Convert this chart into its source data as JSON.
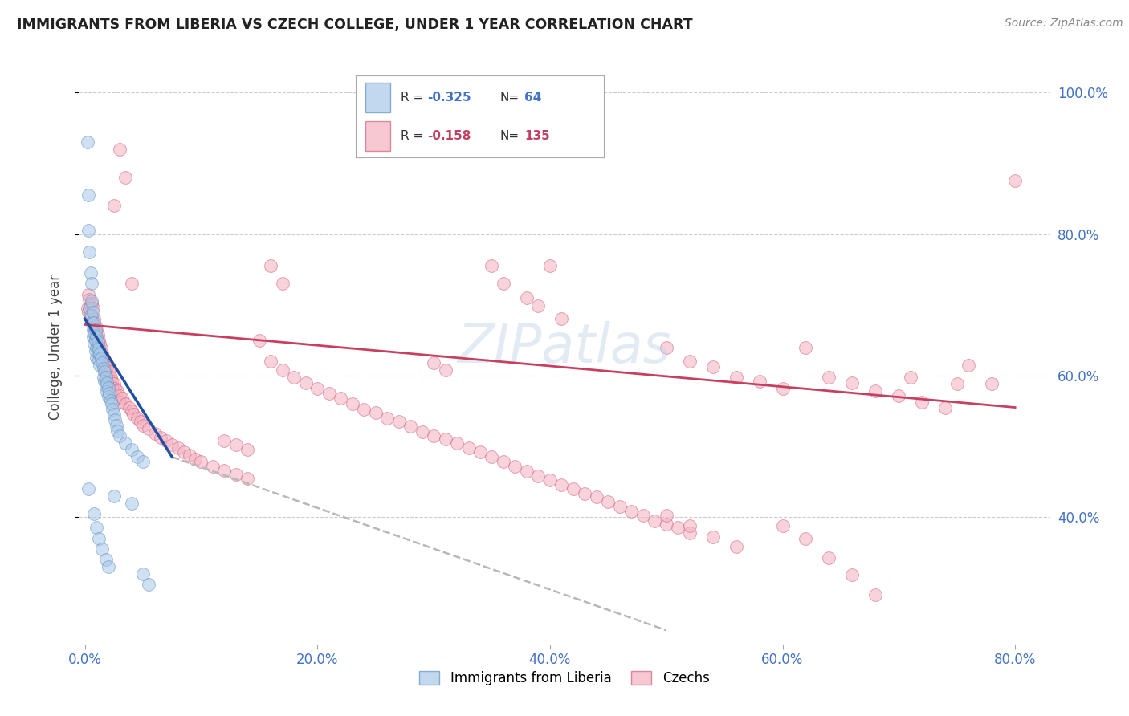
{
  "title": "IMMIGRANTS FROM LIBERIA VS CZECH COLLEGE, UNDER 1 YEAR CORRELATION CHART",
  "source": "Source: ZipAtlas.com",
  "ylabel": "College, Under 1 year",
  "xlabel_ticks": [
    "0.0%",
    "20.0%",
    "40.0%",
    "60.0%",
    "80.0%"
  ],
  "xlabel_vals": [
    0.0,
    0.2,
    0.4,
    0.6,
    0.8
  ],
  "ylabel_ticks": [
    "40.0%",
    "60.0%",
    "80.0%",
    "100.0%"
  ],
  "ylabel_vals": [
    0.4,
    0.6,
    0.8,
    1.0
  ],
  "ylim": [
    0.22,
    1.06
  ],
  "xlim": [
    -0.005,
    0.83
  ],
  "blue_color": "#a8c8e8",
  "pink_color": "#f4b0c0",
  "blue_edge": "#6090c0",
  "pink_edge": "#d06080",
  "trend_blue": "#2050a0",
  "trend_pink": "#c84060",
  "trend_dashed": "#b8b8b8",
  "liberia_points": [
    [
      0.002,
      0.93
    ],
    [
      0.003,
      0.855
    ],
    [
      0.003,
      0.805
    ],
    [
      0.004,
      0.775
    ],
    [
      0.005,
      0.745
    ],
    [
      0.006,
      0.73
    ],
    [
      0.004,
      0.695
    ],
    [
      0.005,
      0.685
    ],
    [
      0.006,
      0.705
    ],
    [
      0.006,
      0.675
    ],
    [
      0.007,
      0.69
    ],
    [
      0.007,
      0.665
    ],
    [
      0.007,
      0.655
    ],
    [
      0.008,
      0.675
    ],
    [
      0.008,
      0.66
    ],
    [
      0.008,
      0.645
    ],
    [
      0.009,
      0.665
    ],
    [
      0.009,
      0.65
    ],
    [
      0.009,
      0.635
    ],
    [
      0.01,
      0.655
    ],
    [
      0.01,
      0.64
    ],
    [
      0.01,
      0.625
    ],
    [
      0.011,
      0.648
    ],
    [
      0.011,
      0.633
    ],
    [
      0.012,
      0.638
    ],
    [
      0.012,
      0.622
    ],
    [
      0.013,
      0.63
    ],
    [
      0.013,
      0.615
    ],
    [
      0.014,
      0.625
    ],
    [
      0.015,
      0.618
    ],
    [
      0.016,
      0.61
    ],
    [
      0.016,
      0.598
    ],
    [
      0.017,
      0.605
    ],
    [
      0.017,
      0.592
    ],
    [
      0.018,
      0.598
    ],
    [
      0.018,
      0.585
    ],
    [
      0.019,
      0.59
    ],
    [
      0.019,
      0.577
    ],
    [
      0.02,
      0.583
    ],
    [
      0.02,
      0.57
    ],
    [
      0.021,
      0.575
    ],
    [
      0.022,
      0.565
    ],
    [
      0.023,
      0.56
    ],
    [
      0.024,
      0.552
    ],
    [
      0.025,
      0.545
    ],
    [
      0.026,
      0.538
    ],
    [
      0.027,
      0.53
    ],
    [
      0.028,
      0.522
    ],
    [
      0.03,
      0.515
    ],
    [
      0.035,
      0.505
    ],
    [
      0.04,
      0.495
    ],
    [
      0.045,
      0.485
    ],
    [
      0.05,
      0.478
    ],
    [
      0.008,
      0.405
    ],
    [
      0.01,
      0.385
    ],
    [
      0.012,
      0.37
    ],
    [
      0.015,
      0.355
    ],
    [
      0.018,
      0.34
    ],
    [
      0.02,
      0.33
    ],
    [
      0.05,
      0.32
    ],
    [
      0.055,
      0.305
    ],
    [
      0.003,
      0.44
    ],
    [
      0.025,
      0.43
    ],
    [
      0.04,
      0.42
    ]
  ],
  "czech_points": [
    [
      0.002,
      0.695
    ],
    [
      0.003,
      0.715
    ],
    [
      0.003,
      0.69
    ],
    [
      0.004,
      0.708
    ],
    [
      0.005,
      0.698
    ],
    [
      0.005,
      0.682
    ],
    [
      0.006,
      0.702
    ],
    [
      0.006,
      0.685
    ],
    [
      0.007,
      0.695
    ],
    [
      0.007,
      0.675
    ],
    [
      0.008,
      0.68
    ],
    [
      0.008,
      0.662
    ],
    [
      0.009,
      0.67
    ],
    [
      0.009,
      0.655
    ],
    [
      0.01,
      0.665
    ],
    [
      0.01,
      0.648
    ],
    [
      0.011,
      0.658
    ],
    [
      0.011,
      0.642
    ],
    [
      0.012,
      0.65
    ],
    [
      0.012,
      0.635
    ],
    [
      0.013,
      0.645
    ],
    [
      0.013,
      0.628
    ],
    [
      0.014,
      0.638
    ],
    [
      0.015,
      0.632
    ],
    [
      0.016,
      0.625
    ],
    [
      0.016,
      0.615
    ],
    [
      0.017,
      0.622
    ],
    [
      0.017,
      0.61
    ],
    [
      0.018,
      0.618
    ],
    [
      0.018,
      0.605
    ],
    [
      0.019,
      0.612
    ],
    [
      0.019,
      0.6
    ],
    [
      0.02,
      0.608
    ],
    [
      0.02,
      0.595
    ],
    [
      0.021,
      0.605
    ],
    [
      0.022,
      0.598
    ],
    [
      0.023,
      0.592
    ],
    [
      0.025,
      0.588
    ],
    [
      0.025,
      0.578
    ],
    [
      0.026,
      0.582
    ],
    [
      0.028,
      0.578
    ],
    [
      0.03,
      0.572
    ],
    [
      0.03,
      0.562
    ],
    [
      0.032,
      0.568
    ],
    [
      0.035,
      0.56
    ],
    [
      0.038,
      0.555
    ],
    [
      0.04,
      0.55
    ],
    [
      0.042,
      0.545
    ],
    [
      0.045,
      0.54
    ],
    [
      0.048,
      0.535
    ],
    [
      0.05,
      0.53
    ],
    [
      0.055,
      0.525
    ],
    [
      0.06,
      0.518
    ],
    [
      0.065,
      0.512
    ],
    [
      0.07,
      0.508
    ],
    [
      0.075,
      0.502
    ],
    [
      0.08,
      0.498
    ],
    [
      0.085,
      0.492
    ],
    [
      0.09,
      0.488
    ],
    [
      0.095,
      0.482
    ],
    [
      0.1,
      0.478
    ],
    [
      0.11,
      0.472
    ],
    [
      0.12,
      0.466
    ],
    [
      0.13,
      0.46
    ],
    [
      0.14,
      0.455
    ],
    [
      0.15,
      0.65
    ],
    [
      0.16,
      0.62
    ],
    [
      0.17,
      0.608
    ],
    [
      0.18,
      0.598
    ],
    [
      0.19,
      0.59
    ],
    [
      0.2,
      0.582
    ],
    [
      0.21,
      0.575
    ],
    [
      0.22,
      0.568
    ],
    [
      0.23,
      0.56
    ],
    [
      0.24,
      0.552
    ],
    [
      0.25,
      0.548
    ],
    [
      0.26,
      0.54
    ],
    [
      0.27,
      0.535
    ],
    [
      0.28,
      0.528
    ],
    [
      0.29,
      0.52
    ],
    [
      0.3,
      0.515
    ],
    [
      0.31,
      0.51
    ],
    [
      0.32,
      0.505
    ],
    [
      0.33,
      0.498
    ],
    [
      0.34,
      0.492
    ],
    [
      0.35,
      0.485
    ],
    [
      0.36,
      0.478
    ],
    [
      0.37,
      0.472
    ],
    [
      0.38,
      0.465
    ],
    [
      0.39,
      0.458
    ],
    [
      0.4,
      0.452
    ],
    [
      0.41,
      0.445
    ],
    [
      0.42,
      0.44
    ],
    [
      0.43,
      0.433
    ],
    [
      0.44,
      0.428
    ],
    [
      0.45,
      0.422
    ],
    [
      0.46,
      0.415
    ],
    [
      0.47,
      0.408
    ],
    [
      0.48,
      0.402
    ],
    [
      0.49,
      0.395
    ],
    [
      0.5,
      0.39
    ],
    [
      0.51,
      0.385
    ],
    [
      0.52,
      0.378
    ],
    [
      0.025,
      0.84
    ],
    [
      0.03,
      0.92
    ],
    [
      0.035,
      0.88
    ],
    [
      0.04,
      0.73
    ],
    [
      0.16,
      0.755
    ],
    [
      0.17,
      0.73
    ],
    [
      0.35,
      0.755
    ],
    [
      0.36,
      0.73
    ],
    [
      0.38,
      0.71
    ],
    [
      0.39,
      0.698
    ],
    [
      0.4,
      0.755
    ],
    [
      0.41,
      0.68
    ],
    [
      0.5,
      0.64
    ],
    [
      0.52,
      0.62
    ],
    [
      0.54,
      0.612
    ],
    [
      0.56,
      0.598
    ],
    [
      0.58,
      0.592
    ],
    [
      0.6,
      0.582
    ],
    [
      0.62,
      0.64
    ],
    [
      0.64,
      0.598
    ],
    [
      0.66,
      0.59
    ],
    [
      0.68,
      0.578
    ],
    [
      0.7,
      0.572
    ],
    [
      0.71,
      0.598
    ],
    [
      0.72,
      0.562
    ],
    [
      0.74,
      0.555
    ],
    [
      0.75,
      0.588
    ],
    [
      0.76,
      0.615
    ],
    [
      0.78,
      0.588
    ],
    [
      0.8,
      0.875
    ],
    [
      0.6,
      0.388
    ],
    [
      0.62,
      0.37
    ],
    [
      0.64,
      0.342
    ],
    [
      0.66,
      0.318
    ],
    [
      0.68,
      0.29
    ],
    [
      0.5,
      0.402
    ],
    [
      0.52,
      0.388
    ],
    [
      0.54,
      0.372
    ],
    [
      0.56,
      0.358
    ],
    [
      0.12,
      0.508
    ],
    [
      0.13,
      0.502
    ],
    [
      0.14,
      0.495
    ],
    [
      0.3,
      0.618
    ],
    [
      0.31,
      0.608
    ]
  ]
}
